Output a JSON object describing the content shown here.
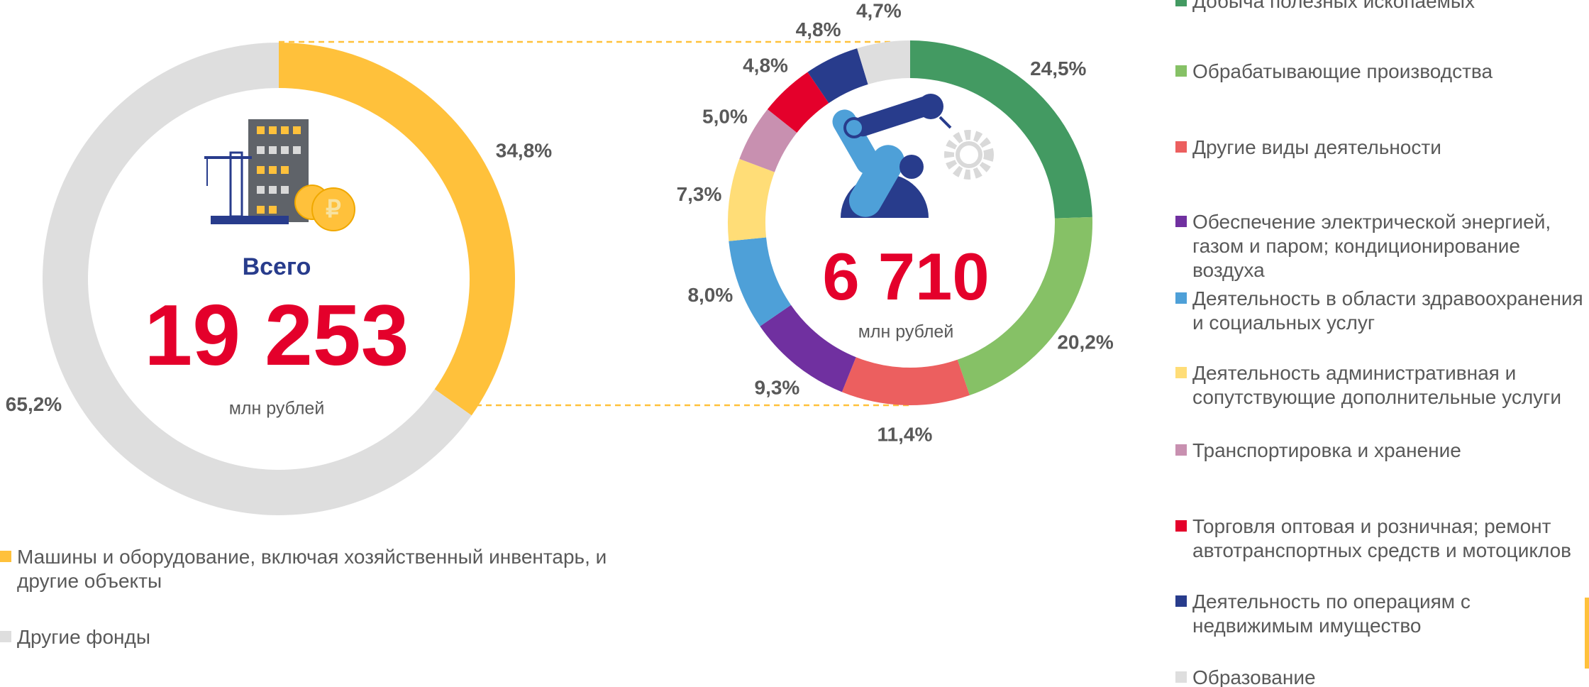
{
  "chart_data": [
    {
      "type": "donut",
      "center_label": "Всего",
      "total": "19 253",
      "unit": "млн рублей",
      "categories": [
        "Машины и оборудование, включая хозяйственный инвентарь, и другие объекты",
        "Другие фонды"
      ],
      "values": [
        34.8,
        65.2
      ],
      "value_labels": [
        "34,8%",
        "65,2%"
      ],
      "colors": [
        "#FFC13B",
        "#DEDEDE"
      ]
    },
    {
      "type": "donut",
      "total": "6 710",
      "unit": "млн рублей",
      "categories": [
        "Добыча полезных ископаемых",
        "Обрабатывающие производства",
        "Другие виды деятельности",
        "Обеспечение электрической энергией, газом и паром; кондиционирование воздуха",
        "Деятельность в области здравоохранения и социальных услуг",
        "Деятельность административная и сопутствующие дополнительные услуги",
        "Транспортировка и хранение",
        "Торговля оптовая и розничная; ремонт автотранспортных средств и мотоциклов",
        "Деятельность по операциям с недвижимым имущество",
        "Образование"
      ],
      "values": [
        24.5,
        20.2,
        11.4,
        9.3,
        8.0,
        7.3,
        5.0,
        4.8,
        4.8,
        4.7
      ],
      "value_labels": [
        "24,5%",
        "20,2%",
        "11,4%",
        "9,3%",
        "8,0%",
        "7,3%",
        "5,0%",
        "4,8%",
        "4,8%",
        "4,7%"
      ],
      "colors": [
        "#439A62",
        "#86C166",
        "#EC5F5F",
        "#7030A0",
        "#4EA0D8",
        "#FFDD77",
        "#C890B0",
        "#E4002B",
        "#283C8C",
        "#DEDEDE"
      ]
    }
  ]
}
